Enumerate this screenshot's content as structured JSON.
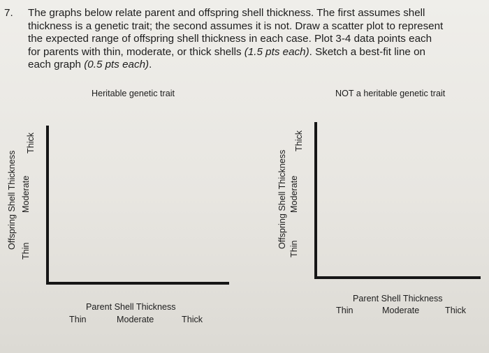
{
  "question": {
    "number": "7.",
    "line1": "The graphs below relate parent and offspring shell thickness.  The first assumes shell",
    "line2": "thickness is a genetic trait; the second assumes it is not.  Draw a scatter plot to represent",
    "line3": "the expected range of offspring shell thickness in each case.  Plot 3-4 data points each",
    "line4a": "for parents with thin, moderate, or thick shells ",
    "line4b": "(1.5 pts each)",
    "line4c": ".  Sketch a best-fit line on",
    "line5a": "each graph ",
    "line5b": "(0.5 pts each)",
    "line5c": "."
  },
  "graph1": {
    "title": "Heritable genetic trait",
    "y_axis_label": "Offspring Shell Thickness",
    "y_ticks": [
      "Thin",
      "Moderate",
      "Thick"
    ],
    "x_axis_label": "Parent Shell Thickness",
    "x_ticks": [
      "Thin",
      "Moderate",
      "Thick"
    ]
  },
  "graph2": {
    "title": "NOT a heritable genetic trait",
    "y_axis_label": "Offspring Shell Thickness",
    "y_ticks": [
      "Thin",
      "Moderate",
      "Thick"
    ],
    "x_axis_label": "Parent Shell Thickness",
    "x_ticks": [
      "Thin",
      "Moderate",
      "Thick"
    ]
  }
}
